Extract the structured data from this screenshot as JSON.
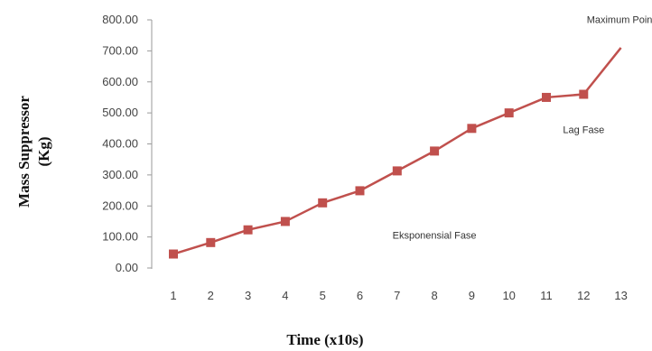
{
  "chart_data": {
    "type": "line",
    "title": "",
    "xlabel": "Time (x10s)",
    "ylabel": [
      "Mass Suppressor",
      "(Kg)"
    ],
    "categories": [
      "1",
      "2",
      "3",
      "4",
      "5",
      "6",
      "7",
      "8",
      "9",
      "10",
      "11",
      "12",
      "13"
    ],
    "series": [
      {
        "values": [
          45,
          82,
          123,
          150,
          210,
          249,
          313,
          377,
          450,
          500,
          550,
          560,
          710
        ],
        "color": "#C0504D",
        "marker": "square"
      }
    ],
    "yticks": [
      "0.00",
      "100.00",
      "200.00",
      "300.00",
      "400.00",
      "500.00",
      "600.00",
      "700.00",
      "800.00"
    ],
    "ylim": [
      0,
      800
    ],
    "grid": false,
    "legend": "none",
    "annotations": [
      {
        "text": "Maximum Point",
        "at_category": "13",
        "at_value": 790
      },
      {
        "text": "Lag Fase",
        "at_category": "12",
        "at_value": 435
      },
      {
        "text": "Eksponensial Fase",
        "at_category": "8",
        "at_value": 95
      }
    ]
  }
}
